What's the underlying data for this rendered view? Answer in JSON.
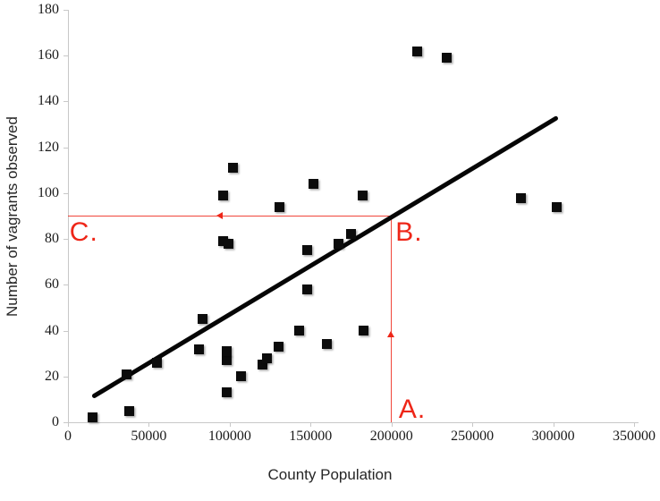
{
  "chart_data": {
    "type": "scatter",
    "title": "",
    "xlabel": "County Population",
    "ylabel": "Number of vagrants observed",
    "xlim": [
      0,
      350000
    ],
    "ylim": [
      0,
      180
    ],
    "x_ticks": [
      0,
      50000,
      100000,
      150000,
      200000,
      250000,
      300000,
      350000
    ],
    "y_ticks": [
      0,
      20,
      40,
      60,
      80,
      100,
      120,
      140,
      160,
      180
    ],
    "grid": false,
    "legend_position": "none",
    "axis_color": "#c8c8c8",
    "tick_label_color": "#1a1a1a",
    "marker": {
      "shape": "square",
      "size": 11,
      "color": "#0c0c0c"
    },
    "points": [
      [
        15000,
        2
      ],
      [
        36000,
        21
      ],
      [
        38000,
        5
      ],
      [
        55000,
        26
      ],
      [
        81000,
        32
      ],
      [
        83000,
        45
      ],
      [
        96000,
        79
      ],
      [
        96000,
        99
      ],
      [
        98000,
        13
      ],
      [
        98000,
        27
      ],
      [
        98000,
        31
      ],
      [
        99000,
        78
      ],
      [
        102000,
        111
      ],
      [
        107000,
        20
      ],
      [
        120000,
        25
      ],
      [
        123000,
        28
      ],
      [
        130000,
        33
      ],
      [
        131000,
        94
      ],
      [
        143000,
        40
      ],
      [
        148000,
        58
      ],
      [
        148000,
        75
      ],
      [
        152000,
        104
      ],
      [
        160000,
        34
      ],
      [
        167000,
        78
      ],
      [
        175000,
        82
      ],
      [
        182000,
        99
      ],
      [
        183000,
        40
      ],
      [
        216000,
        162
      ],
      [
        234000,
        159
      ],
      [
        280000,
        98
      ],
      [
        302000,
        94
      ]
    ],
    "trendline": {
      "x1": 15000,
      "y1": 11,
      "x2": 302500,
      "y2": 133,
      "color": "#060606",
      "width": 5
    },
    "annotations": {
      "color": "#ee2618",
      "guide_lines": [
        {
          "type": "vertical",
          "x": 200000,
          "y1": 0,
          "y2": 90
        },
        {
          "type": "horizontal",
          "y": 90,
          "x1": 0,
          "x2": 200000
        }
      ],
      "arrows": [
        {
          "dir": "up",
          "x": 200000,
          "y": 40
        },
        {
          "dir": "left",
          "x": 92000,
          "y": 90
        }
      ],
      "labels": [
        {
          "text": "A.",
          "x": 204500,
          "y": 11.4
        },
        {
          "text": "B.",
          "x": 202500,
          "y": 88.8
        },
        {
          "text": "C.",
          "x": 1000,
          "y": 88.8
        }
      ]
    }
  }
}
